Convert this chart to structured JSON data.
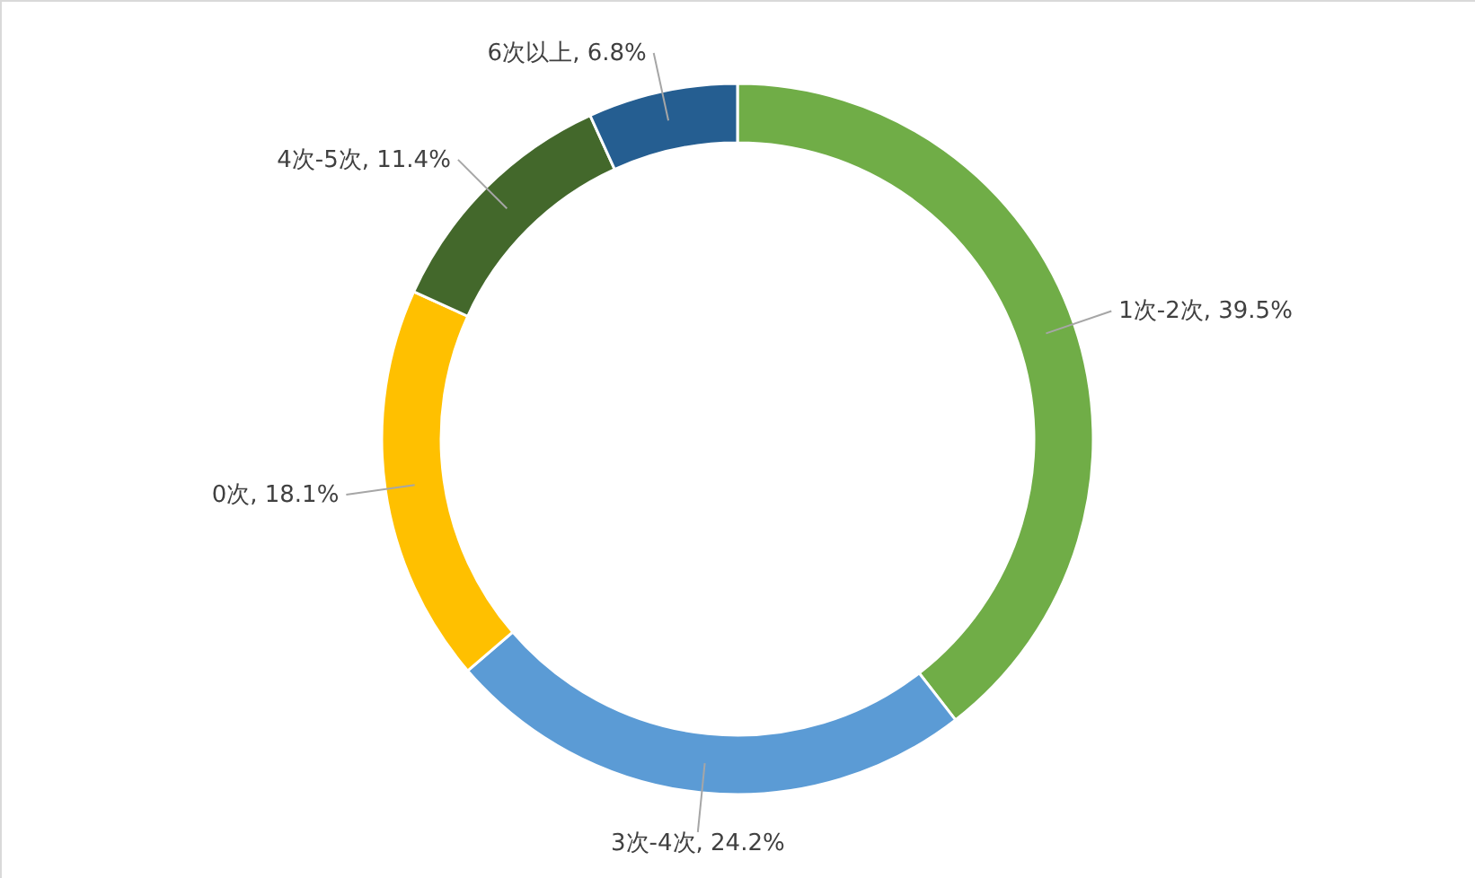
{
  "chart_data": {
    "type": "donut",
    "categories": [
      "1次-2次",
      "3次-4次",
      "0次",
      "4次-5次",
      "6次以上"
    ],
    "values": [
      39.5,
      24.2,
      18.1,
      11.4,
      6.8
    ],
    "colors": [
      "#70ad47",
      "#5b9bd5",
      "#ffc000",
      "#43682b",
      "#255e91"
    ],
    "value_labels": [
      "39.5%",
      "24.2%",
      "18.1%",
      "11.4%",
      "6.8%"
    ]
  }
}
